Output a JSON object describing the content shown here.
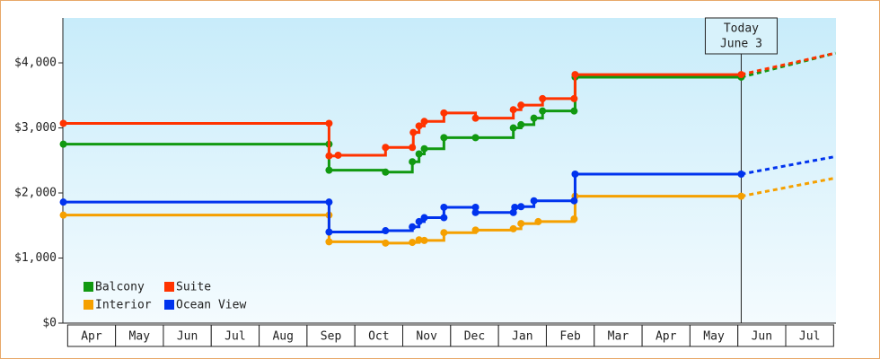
{
  "chart_data": {
    "type": "step-line",
    "xlim": [
      -0.1,
      16.05
    ],
    "ylim": [
      0,
      4690
    ],
    "xticks": [
      {
        "value": 0.5,
        "label": "Apr"
      },
      {
        "value": 1.5,
        "label": "May"
      },
      {
        "value": 2.5,
        "label": "Jun"
      },
      {
        "value": 3.5,
        "label": "Jul"
      },
      {
        "value": 4.5,
        "label": "Aug"
      },
      {
        "value": 5.5,
        "label": "Sep"
      },
      {
        "value": 6.5,
        "label": "Oct"
      },
      {
        "value": 7.5,
        "label": "Nov"
      },
      {
        "value": 8.5,
        "label": "Dec"
      },
      {
        "value": 9.5,
        "label": "Jan"
      },
      {
        "value": 10.5,
        "label": "Feb"
      },
      {
        "value": 11.5,
        "label": "Mar"
      },
      {
        "value": 12.5,
        "label": "Apr"
      },
      {
        "value": 13.5,
        "label": "May"
      },
      {
        "value": 14.5,
        "label": "Jun"
      },
      {
        "value": 15.5,
        "label": "Jul"
      }
    ],
    "yticks": [
      {
        "value": 0,
        "label": "$0"
      },
      {
        "value": 1000,
        "label": "$1,000"
      },
      {
        "value": 2000,
        "label": "$2,000"
      },
      {
        "value": 3000,
        "label": "$3,000"
      },
      {
        "value": 4000,
        "label": "$4,000"
      }
    ],
    "today": {
      "x": 14.07,
      "label": [
        "Today",
        "June 3"
      ]
    },
    "legend": "bottom-left",
    "series": [
      {
        "name": "Balcony",
        "color": "#119911",
        "x": [
          -0.09,
          5.46,
          5.46,
          6.64,
          7.2,
          7.34,
          7.45,
          7.86,
          8.52,
          9.31,
          9.47,
          9.74,
          9.92,
          10.58,
          10.6,
          14.07
        ],
        "values": [
          2750,
          2750,
          2350,
          2320,
          2480,
          2600,
          2680,
          2850,
          2850,
          3000,
          3050,
          3150,
          3260,
          3260,
          3780,
          3780
        ],
        "forecast": {
          "x": 16.04,
          "value": 4150
        }
      },
      {
        "name": "Suite",
        "color": "#ff3300",
        "x": [
          -0.09,
          5.46,
          5.46,
          5.65,
          6.64,
          7.2,
          7.22,
          7.34,
          7.45,
          7.86,
          8.52,
          9.31,
          9.47,
          9.92,
          10.58,
          10.6,
          14.07
        ],
        "values": [
          3070,
          3070,
          2570,
          2580,
          2700,
          2700,
          2930,
          3030,
          3100,
          3230,
          3150,
          3280,
          3350,
          3450,
          3450,
          3820,
          3820
        ],
        "forecast": {
          "x": 16.04,
          "value": 4150
        }
      },
      {
        "name": "Interior",
        "color": "#f5a000",
        "x": [
          -0.09,
          5.46,
          5.46,
          6.64,
          7.2,
          7.34,
          7.45,
          7.86,
          8.52,
          9.31,
          9.47,
          9.83,
          10.58,
          10.6,
          14.07
        ],
        "values": [
          1660,
          1660,
          1250,
          1230,
          1240,
          1280,
          1270,
          1390,
          1430,
          1450,
          1530,
          1560,
          1600,
          1950,
          1950
        ],
        "forecast": {
          "x": 16.04,
          "value": 2230
        }
      },
      {
        "name": "Ocean View",
        "color": "#0033ee",
        "x": [
          -0.09,
          5.46,
          5.46,
          6.64,
          7.2,
          7.34,
          7.45,
          7.86,
          7.86,
          8.52,
          8.52,
          9.31,
          9.34,
          9.47,
          9.74,
          10.58,
          10.6,
          14.07
        ],
        "values": [
          1860,
          1860,
          1400,
          1420,
          1480,
          1560,
          1620,
          1620,
          1780,
          1780,
          1700,
          1700,
          1780,
          1790,
          1880,
          1880,
          2290,
          2290
        ],
        "forecast": {
          "x": 16.04,
          "value": 2560
        }
      }
    ]
  }
}
